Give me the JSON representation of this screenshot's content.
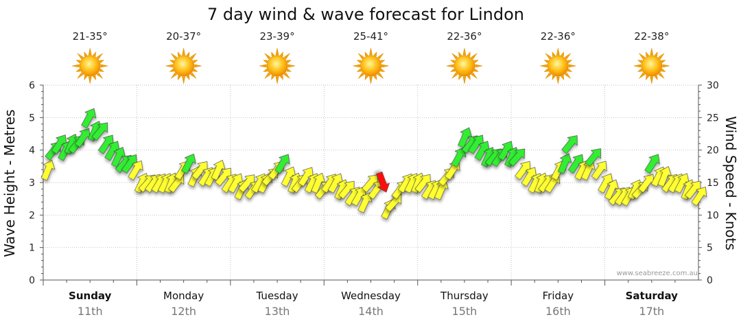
{
  "chart_data": {
    "type": "line",
    "title": "7 day wind & wave forecast for Lindon",
    "ylabel_left": "Wave Height - Metres",
    "ylabel_right": "Wind Speed - Knots",
    "ylim_left": [
      0,
      6
    ],
    "ylim_right": [
      0,
      30
    ],
    "yticks_left": [
      "0",
      "1",
      "2",
      "3",
      "4",
      "5",
      "6"
    ],
    "yticks_right": [
      "0",
      "5",
      "10",
      "15",
      "20",
      "25",
      "30"
    ],
    "days": [
      {
        "name": "Sunday",
        "date": "11th",
        "temp": "21-35°",
        "bold": true
      },
      {
        "name": "Monday",
        "date": "12th",
        "temp": "20-37°",
        "bold": false
      },
      {
        "name": "Tuesday",
        "date": "13th",
        "temp": "23-39°",
        "bold": false
      },
      {
        "name": "Wednesday",
        "date": "14th",
        "temp": "25-41°",
        "bold": false
      },
      {
        "name": "Thursday",
        "date": "15th",
        "temp": "22-36°",
        "bold": false
      },
      {
        "name": "Friday",
        "date": "16th",
        "temp": "22-36°",
        "bold": false
      },
      {
        "name": "Saturday",
        "date": "17th",
        "temp": "22-38°",
        "bold": true
      }
    ],
    "wind_series": {
      "name": "Wind Speed (knots)",
      "values": [
        17,
        20,
        21,
        20,
        21,
        21,
        22,
        25,
        23,
        23,
        21,
        20,
        19,
        18,
        18,
        17,
        15,
        15,
        15,
        15,
        15,
        15,
        15,
        17,
        18,
        16,
        17,
        16,
        16,
        17,
        16,
        15,
        15,
        14,
        15,
        14,
        15,
        15,
        16,
        17,
        18,
        16,
        15,
        15,
        16,
        15,
        15,
        14,
        15,
        15,
        14,
        14,
        13,
        13,
        12,
        15,
        14,
        15,
        11,
        12,
        14,
        15,
        15,
        15,
        15,
        14,
        14,
        14,
        16,
        17,
        19,
        22,
        21,
        21,
        20,
        19,
        19,
        19,
        20,
        19,
        19,
        17,
        16,
        15,
        15,
        15,
        15,
        17,
        18,
        21,
        18,
        17,
        17,
        19,
        17,
        15,
        14,
        13,
        13,
        13,
        14,
        14,
        15,
        18,
        16,
        16,
        15,
        15,
        15,
        14,
        14,
        13
      ]
    },
    "wind_colors": {
      "light": "#ffff33",
      "moderate": "#33ee33",
      "strong": "#ff1111"
    },
    "color_rule": "yellow < 18 kn, green 18-25 kn, red = gusty/offshore peak",
    "red_index": 57
  },
  "watermark": "www.seabreeze.com.au"
}
